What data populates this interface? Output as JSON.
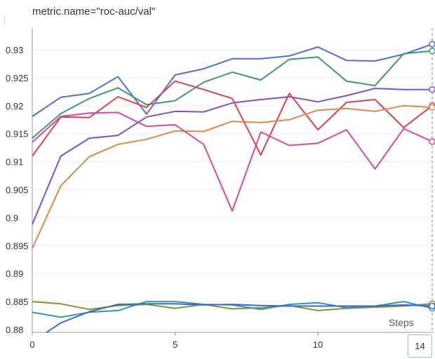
{
  "header": {
    "title": "metric.name=\"roc-auc/val\""
  },
  "hover": {
    "step_label": "14"
  },
  "chart_data": {
    "type": "line",
    "title": "metric.name=\"roc-auc/val\"",
    "xlabel": "Steps",
    "ylabel": "",
    "xlim": [
      0,
      14
    ],
    "ylim": [
      0.88,
      0.934
    ],
    "x_ticks": [
      0,
      5,
      10
    ],
    "y_ticks": [
      0.88,
      0.885,
      0.89,
      0.895,
      0.9,
      0.905,
      0.91,
      0.915,
      0.92,
      0.925,
      0.93
    ],
    "y_tick_labels": [
      "0.88",
      "0.885",
      "0.89",
      "0.895",
      "0.9",
      "0.905",
      "0.91",
      "0.915",
      "0.92",
      "0.925",
      "0.93"
    ],
    "grid": true,
    "hover_step": 14,
    "x": [
      0,
      1,
      2,
      3,
      4,
      5,
      6,
      7,
      8,
      9,
      10,
      11,
      12,
      13,
      14
    ],
    "series": [
      {
        "color": "#4e6fd8",
        "values": [
          0.9181,
          0.9215,
          0.9222,
          0.9252,
          0.9185,
          0.9255,
          0.9266,
          0.9284,
          0.9284,
          0.9289,
          0.9305,
          0.9281,
          0.928,
          0.9292,
          0.931
        ]
      },
      {
        "color": "#3f9b6c",
        "values": [
          0.9142,
          0.9186,
          0.9213,
          0.9232,
          0.9202,
          0.9209,
          0.9242,
          0.926,
          0.9246,
          0.9283,
          0.9287,
          0.9244,
          0.9236,
          0.9293,
          0.9298
        ]
      },
      {
        "color": "#7b4fd2",
        "values": [
          0.8988,
          0.911,
          0.9142,
          0.9147,
          0.918,
          0.919,
          0.9189,
          0.9205,
          0.9211,
          0.9216,
          0.9207,
          0.9218,
          0.9231,
          0.9229,
          0.9229
        ]
      },
      {
        "color": "#d6434a",
        "values": [
          0.911,
          0.918,
          0.9179,
          0.9216,
          0.9197,
          0.9244,
          0.9229,
          0.9213,
          0.9112,
          0.9222,
          0.9157,
          0.9206,
          0.9211,
          0.9161,
          0.92
        ]
      },
      {
        "color": "#de8748",
        "values": [
          0.8945,
          0.9057,
          0.9109,
          0.9131,
          0.914,
          0.9155,
          0.9154,
          0.9172,
          0.917,
          0.9175,
          0.9192,
          0.9195,
          0.919,
          0.92,
          0.9197
        ]
      },
      {
        "color": "#d64a99",
        "values": [
          0.9135,
          0.9181,
          0.9187,
          0.9188,
          0.9163,
          0.9166,
          0.9131,
          0.9012,
          0.9153,
          0.9129,
          0.9133,
          0.9157,
          0.9087,
          0.9159,
          0.9136
        ]
      },
      {
        "color": "#7c9a25",
        "values": [
          0.885,
          0.8846,
          0.8836,
          0.8843,
          0.8845,
          0.8838,
          0.8845,
          0.8837,
          0.8839,
          0.8843,
          0.8834,
          0.8838,
          0.884,
          0.8842,
          0.8846
        ]
      },
      {
        "color": "#2f95b8",
        "values": [
          0.8831,
          0.8822,
          0.8831,
          0.8834,
          0.885,
          0.885,
          0.8845,
          0.8844,
          0.8836,
          0.8845,
          0.8848,
          0.8839,
          0.8842,
          0.885,
          0.8838
        ]
      },
      {
        "color": "#3c69cf",
        "values": [
          0.8778,
          0.8812,
          0.8832,
          0.8845,
          0.8846,
          0.8846,
          0.8844,
          0.8845,
          0.8843,
          0.8842,
          0.8842,
          0.8842,
          0.8842,
          0.8844,
          0.8842
        ]
      }
    ]
  }
}
